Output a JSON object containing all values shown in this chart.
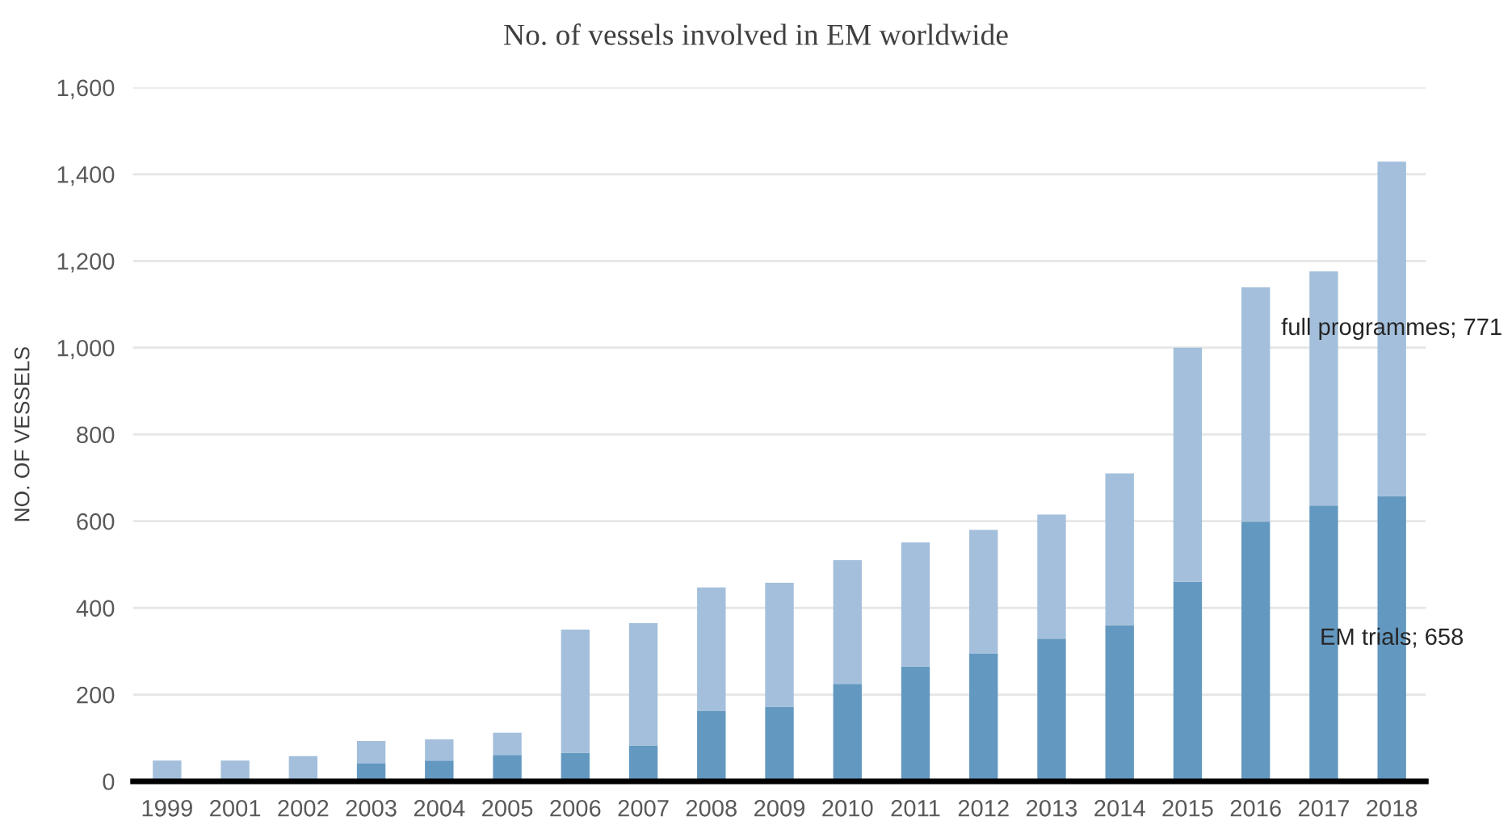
{
  "chart_data": {
    "type": "bar",
    "title": "No. of vessels involved in EM worldwide",
    "ylabel": "NO. OF VESSELS",
    "categories": [
      "1999",
      "2001",
      "2002",
      "2003",
      "2004",
      "2005",
      "2006",
      "2007",
      "2008",
      "2009",
      "2010",
      "2011",
      "2012",
      "2013",
      "2014",
      "2015",
      "2016",
      "2017",
      "2018"
    ],
    "stacked": true,
    "series": [
      {
        "color": "#6398c0",
        "values": [
          0,
          0,
          0,
          41,
          48,
          61,
          66,
          83,
          162,
          172,
          225,
          265,
          294,
          329,
          360,
          460,
          599,
          636,
          658
        ],
        "value_labels": [
          null,
          null,
          null,
          null,
          null,
          null,
          null,
          null,
          null,
          null,
          null,
          null,
          null,
          null,
          null,
          null,
          null,
          null,
          "EM trials; 658"
        ]
      },
      {
        "color": "#a3bfdb",
        "values": [
          48,
          48,
          58,
          52,
          49,
          51,
          284,
          282,
          285,
          286,
          285,
          286,
          286,
          286,
          350,
          540,
          540,
          540,
          771
        ],
        "value_labels": [
          null,
          null,
          null,
          null,
          null,
          null,
          null,
          null,
          null,
          null,
          null,
          null,
          null,
          null,
          null,
          null,
          null,
          null,
          "full programmes; 771"
        ]
      }
    ],
    "ylim": [
      0,
      1600
    ],
    "yticks": [
      0,
      200,
      400,
      600,
      800,
      {
        "value": 1000,
        "label": "1,000"
      },
      {
        "value": 1200,
        "label": "1,200"
      },
      {
        "value": 1400,
        "label": "1,400"
      },
      {
        "value": 1600,
        "label": "1,600"
      }
    ],
    "grid": "y"
  }
}
